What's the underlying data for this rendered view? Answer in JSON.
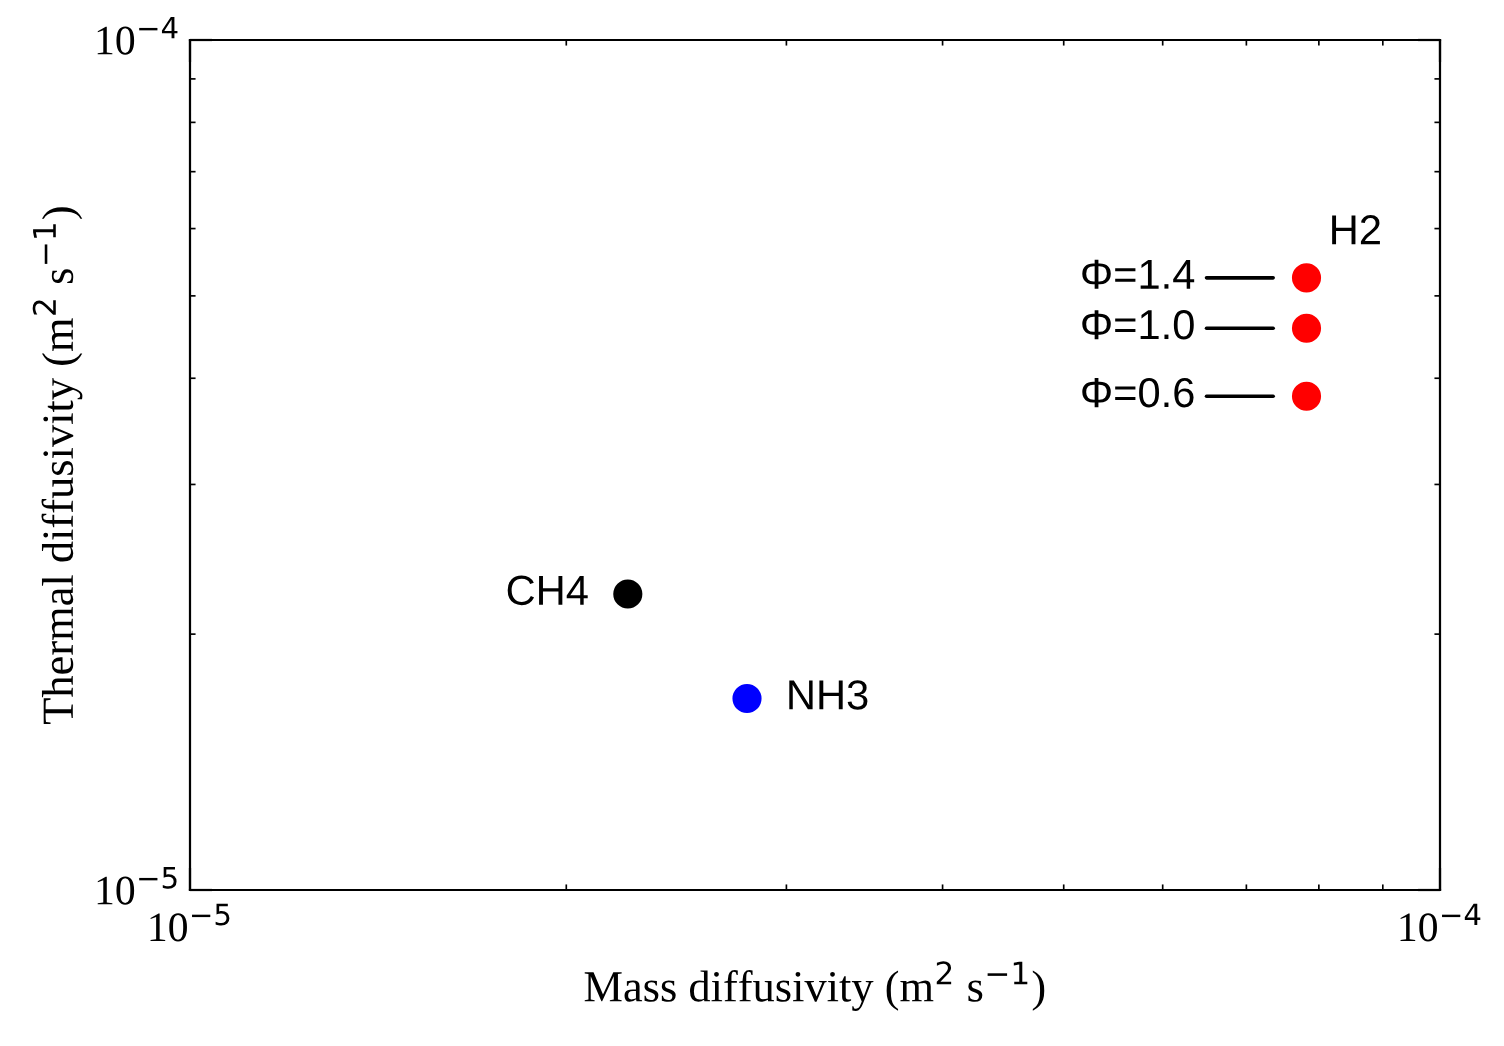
{
  "chart_data": {
    "type": "scatter",
    "xlabel": "Mass diffusivity (m$^{2}$ s$^{−1}$)",
    "ylabel": "Thermal diffusivity (m$^{2}$ s$^{−1}$)",
    "log": "xy",
    "grid": false,
    "marker": "circle",
    "xlim": [
      1e-05,
      0.0001
    ],
    "ylim": [
      1e-05,
      0.0001
    ],
    "xticks": [
      {
        "value": 1e-05,
        "label": "10$^{−5}$"
      },
      {
        "value": 0.0001,
        "label": "10$^{−4}$"
      }
    ],
    "yticks": [
      {
        "value": 1e-05,
        "label": "10$^{−5}$"
      },
      {
        "value": 0.0001,
        "label": "10$^{−4}$"
      }
    ],
    "series": [
      {
        "color": "#000000",
        "x": [
          2.24e-05
        ],
        "values": [
          2.23e-05
        ]
      },
      {
        "color": "#0000ff",
        "x": [
          2.79e-05
        ],
        "values": [
          1.68e-05
        ]
      },
      {
        "color": "#ff0000",
        "x": [
          7.82e-05,
          7.82e-05,
          7.82e-05
        ],
        "values": [
          5.25e-05,
          4.58e-05,
          3.81e-05
        ]
      }
    ],
    "annotations": [
      {
        "text": "CH4",
        "x": 2.24e-05,
        "y": 2.23e-05
      },
      {
        "text": "NH3",
        "x": 2.79e-05,
        "y": 1.68e-05
      },
      {
        "text": "H2",
        "x": 7.82e-05,
        "y": 5.25e-05
      },
      {
        "text": "Φ=1.4",
        "x": 7.82e-05,
        "y": 5.25e-05
      },
      {
        "text": "Φ=1.0",
        "x": 7.82e-05,
        "y": 4.58e-05
      },
      {
        "text": "Φ=0.6",
        "x": 7.82e-05,
        "y": 3.81e-05
      }
    ]
  }
}
